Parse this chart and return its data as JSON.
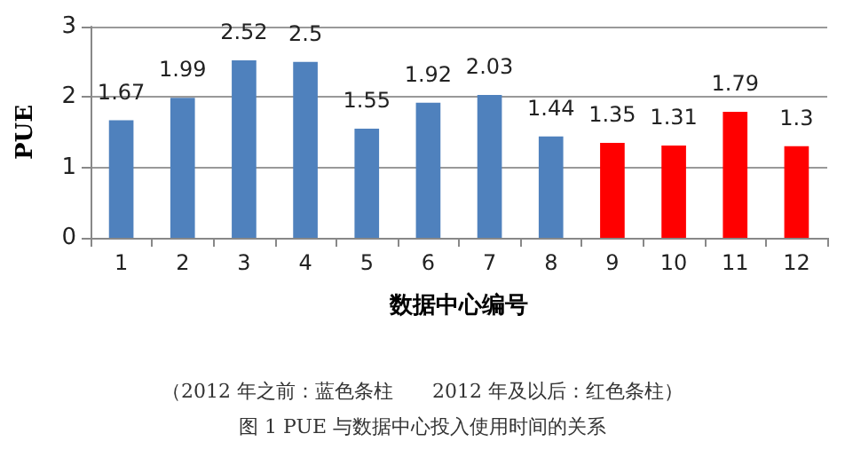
{
  "chart_data": {
    "type": "bar",
    "xlabel": "数据中心编号",
    "ylabel": "PUE",
    "categories": [
      "1",
      "2",
      "3",
      "4",
      "5",
      "6",
      "7",
      "8",
      "9",
      "10",
      "11",
      "12"
    ],
    "values": [
      1.67,
      1.99,
      2.52,
      2.5,
      1.55,
      1.92,
      2.03,
      1.44,
      1.35,
      1.31,
      1.79,
      1.3
    ],
    "colors": [
      "#4f81bd",
      "#4f81bd",
      "#4f81bd",
      "#4f81bd",
      "#4f81bd",
      "#4f81bd",
      "#4f81bd",
      "#4f81bd",
      "#ff0000",
      "#ff0000",
      "#ff0000",
      "#ff0000"
    ],
    "ylim": [
      0,
      3
    ],
    "yticks": [
      0,
      1,
      2,
      3
    ],
    "grid": "y",
    "data_labels": true,
    "annotations": [
      "（2012 年之前：蓝色条柱　　2012 年及以后：红色条柱）",
      "图 1 PUE 与数据中心投入使用时间的关系"
    ]
  }
}
